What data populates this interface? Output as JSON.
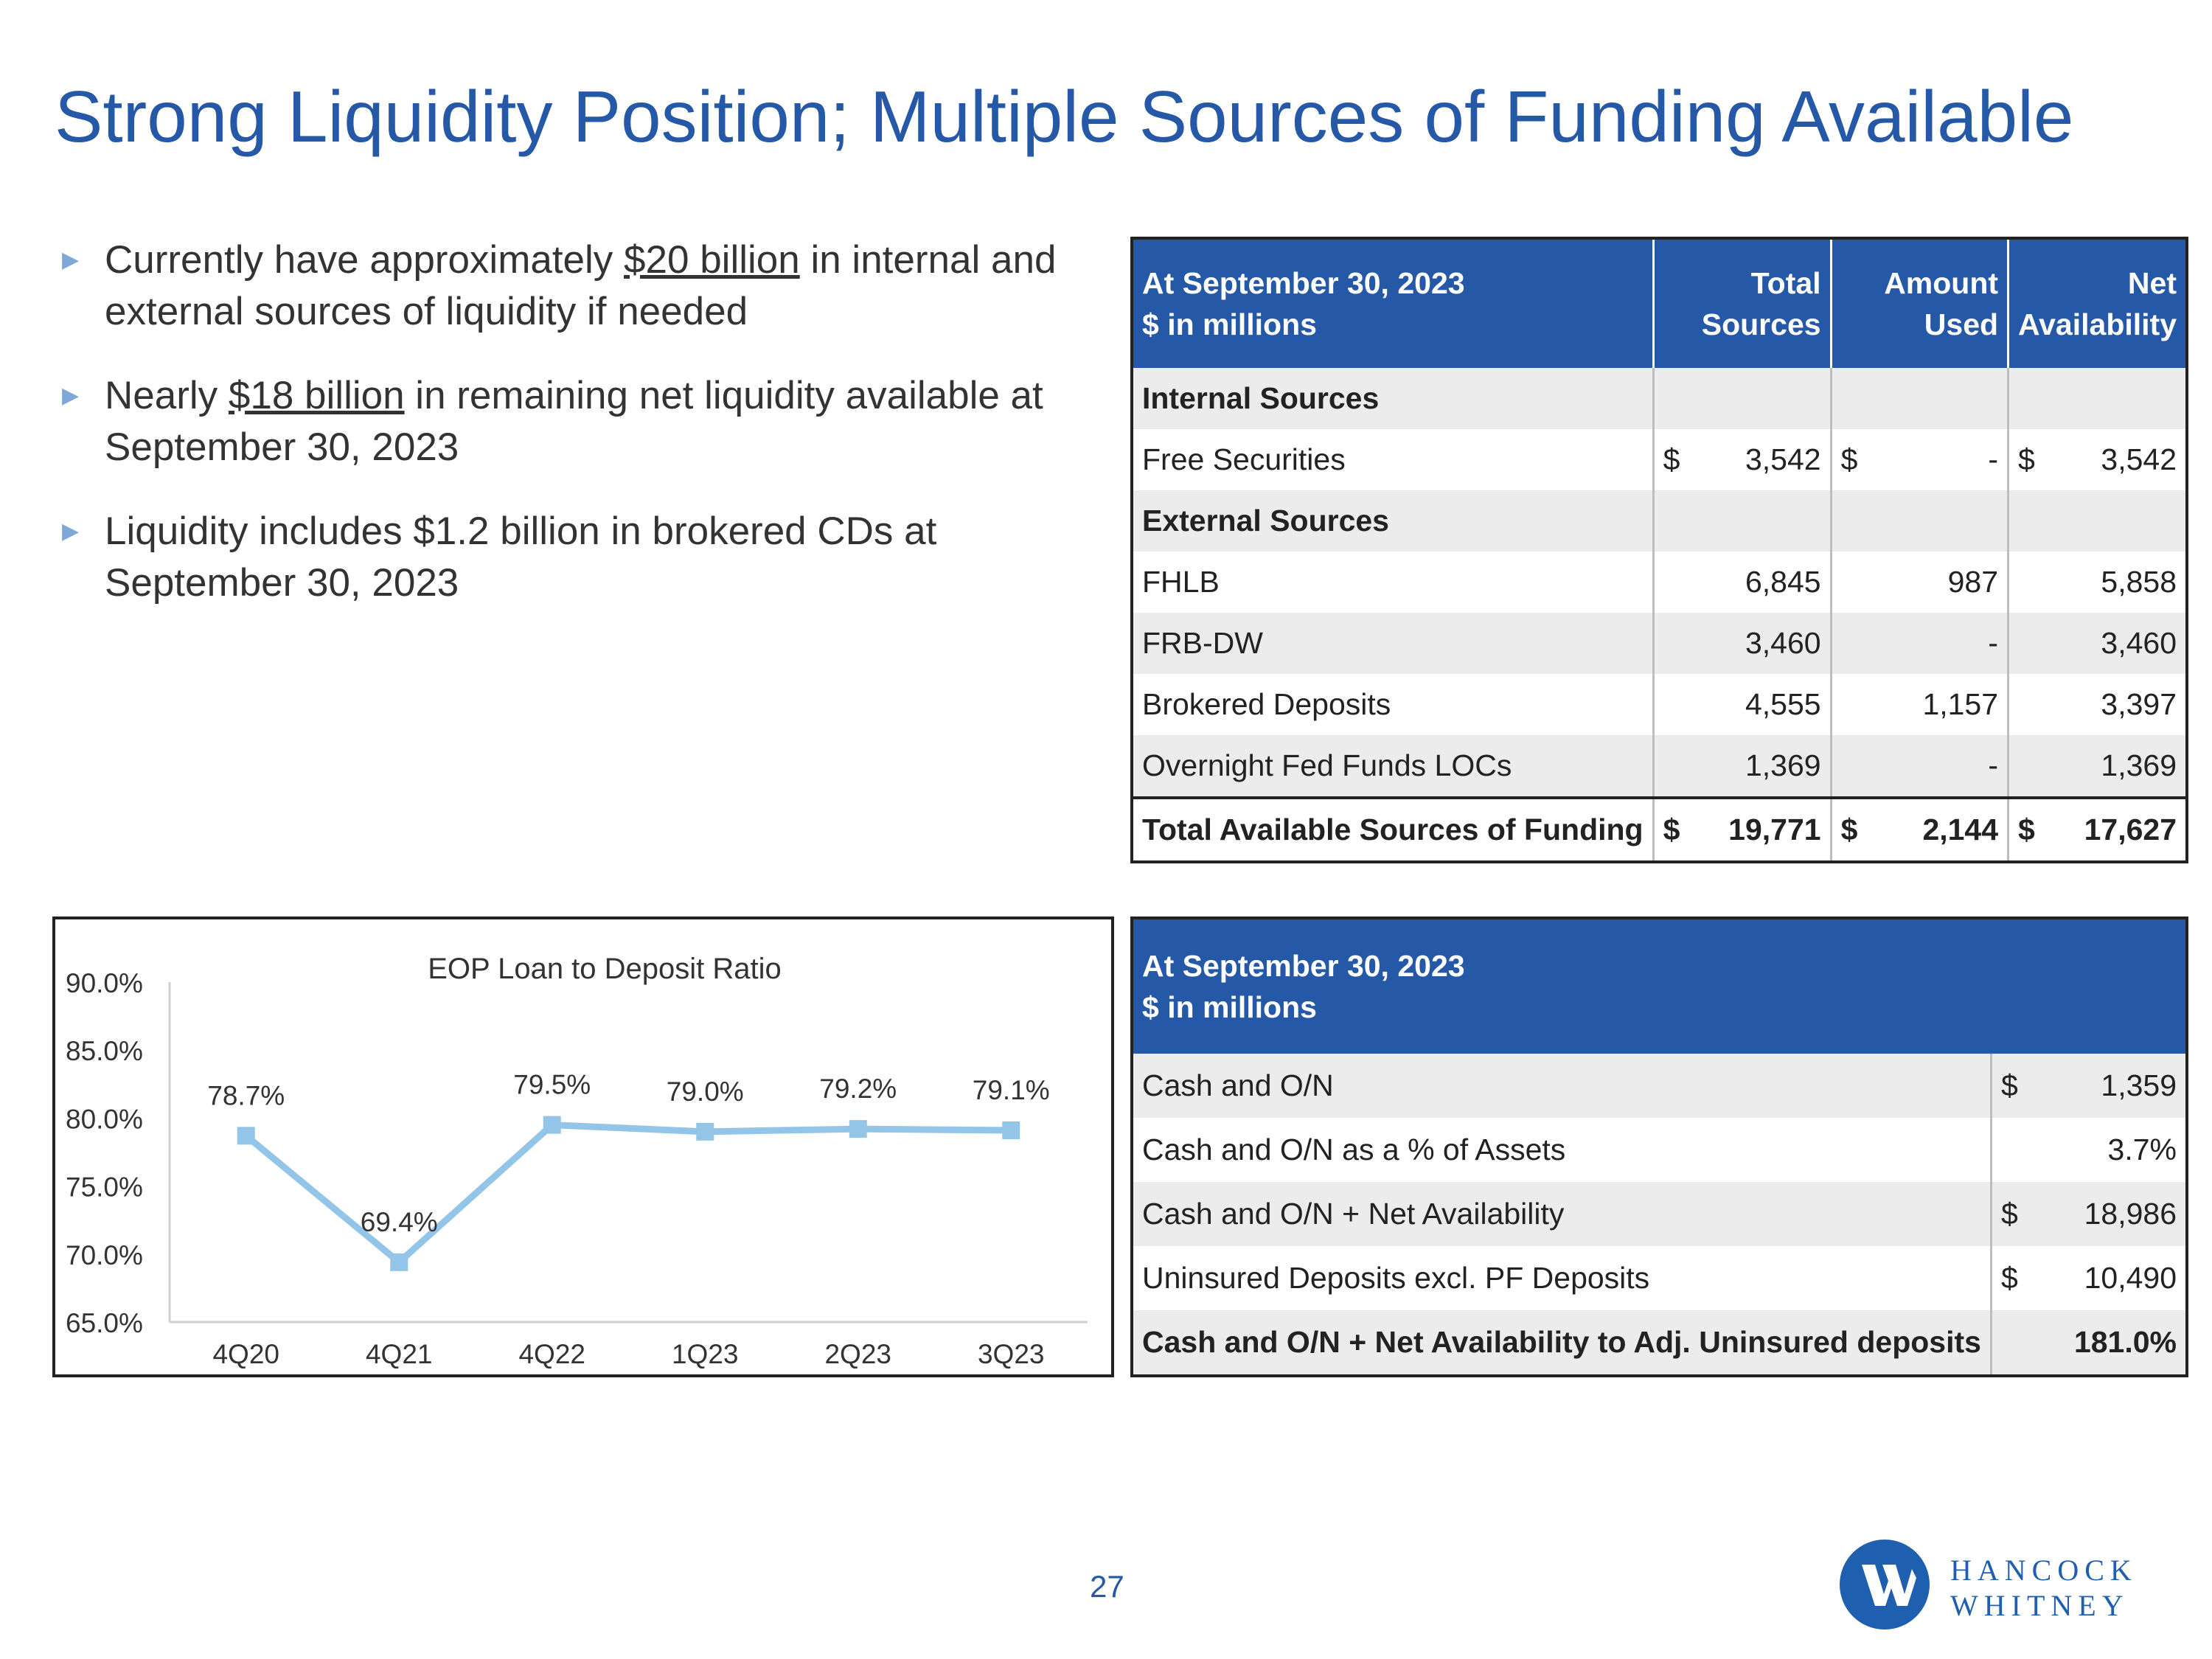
{
  "title": "Strong Liquidity Position; Multiple Sources of Funding Available",
  "bullets": [
    {
      "pre": "Currently have approximately ",
      "emph": "$20 billion",
      "post": " in internal and external sources of liquidity if needed"
    },
    {
      "pre": "Nearly ",
      "emph": "$18 billion",
      "post": " in remaining net liquidity available at September 30, 2023"
    },
    {
      "pre": "Liquidity includes $1.2 billion in brokered CDs at September 30, 2023",
      "emph": "",
      "post": ""
    }
  ],
  "funding_table": {
    "header": {
      "col0_line1": "At September 30, 2023",
      "col0_line2": "$ in millions",
      "col1_line1": "Total",
      "col1_line2": "Sources",
      "col2_line1": "Amount",
      "col2_line2": "Used",
      "col3_line1": "Net",
      "col3_line2": "Availability"
    },
    "section_internal": "Internal Sources",
    "free_securities": {
      "label": "Free Securities",
      "c1_sym": "$",
      "c1": "3,542",
      "c2_sym": "$",
      "c2": "-",
      "c3_sym": "$",
      "c3": "3,542"
    },
    "section_external": "External Sources",
    "rows": [
      {
        "label": "FHLB",
        "c1": "6,845",
        "c2": "987",
        "c3": "5,858"
      },
      {
        "label": "FRB-DW",
        "c1": "3,460",
        "c2": "-",
        "c3": "3,460"
      },
      {
        "label": "Brokered Deposits",
        "c1": "4,555",
        "c2": "1,157",
        "c3": "3,397"
      },
      {
        "label": "Overnight Fed Funds LOCs",
        "c1": "1,369",
        "c2": "-",
        "c3": "1,369"
      }
    ],
    "total": {
      "label": "Total Available Sources of Funding",
      "c1_sym": "$",
      "c1": "19,771",
      "c2_sym": "$",
      "c2": "2,144",
      "c3_sym": "$",
      "c3": "17,627"
    }
  },
  "cash_table": {
    "header": {
      "line1": "At September 30, 2023",
      "line2": "$ in millions"
    },
    "rows": [
      {
        "label": "Cash and O/N",
        "sym": "$",
        "value": "1,359"
      },
      {
        "label": "Cash and O/N as a % of Assets",
        "sym": "",
        "value": "3.7%"
      },
      {
        "label": "Cash and O/N + Net Availability",
        "sym": "$",
        "value": "18,986"
      },
      {
        "label": "Uninsured Deposits excl. PF Deposits",
        "sym": "$",
        "value": "10,490"
      },
      {
        "label": "Cash and O/N + Net Availability to Adj. Uninsured deposits",
        "sym": "",
        "value": "181.0%"
      }
    ]
  },
  "chart_data": {
    "type": "line",
    "title": "EOP Loan to Deposit Ratio",
    "categories": [
      "4Q20",
      "4Q21",
      "4Q22",
      "1Q23",
      "2Q23",
      "3Q23"
    ],
    "values": [
      78.7,
      69.4,
      79.5,
      79.0,
      79.2,
      79.1
    ],
    "data_labels": [
      "78.7%",
      "69.4%",
      "79.5%",
      "79.0%",
      "79.2%",
      "79.1%"
    ],
    "y_ticks": [
      "65.0%",
      "70.0%",
      "75.0%",
      "80.0%",
      "85.0%",
      "90.0%"
    ],
    "ylim": [
      65,
      90
    ],
    "grid": false,
    "series_color": "#93c5e8"
  },
  "page_number": "27",
  "logo": {
    "line1": "HANCOCK",
    "line2": "WHITNEY",
    "color": "#1f5fb0"
  }
}
